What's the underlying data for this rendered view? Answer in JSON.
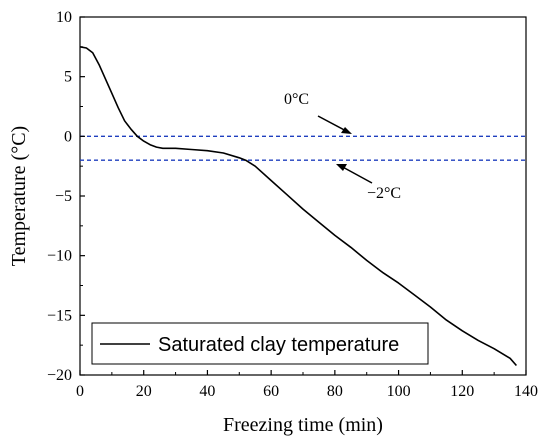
{
  "chart_data": {
    "type": "line",
    "xlabel": "Freezing time (min)",
    "ylabel": "Temperature (°C)",
    "xlim": [
      0,
      140
    ],
    "ylim": [
      -20,
      10
    ],
    "xticks": [
      0,
      20,
      40,
      60,
      80,
      100,
      120,
      140
    ],
    "yticks": [
      10,
      5,
      0,
      -5,
      -10,
      -15,
      -20
    ],
    "grid": false,
    "legend_position": "bottom-left",
    "series": [
      {
        "name": "Saturated clay temperature",
        "color": "#000000",
        "x": [
          0,
          2,
          4,
          6,
          8,
          10,
          12,
          14,
          16,
          18,
          20,
          22,
          24,
          26,
          28,
          30,
          35,
          40,
          45,
          50,
          52,
          55,
          60,
          65,
          70,
          75,
          80,
          85,
          90,
          95,
          100,
          105,
          110,
          115,
          120,
          125,
          130,
          135,
          137
        ],
        "y": [
          7.5,
          7.4,
          7.0,
          6.0,
          4.8,
          3.6,
          2.4,
          1.3,
          0.6,
          0.0,
          -0.4,
          -0.7,
          -0.9,
          -1.0,
          -1.0,
          -1.0,
          -1.1,
          -1.2,
          -1.4,
          -1.8,
          -2.0,
          -2.5,
          -3.7,
          -4.9,
          -6.1,
          -7.2,
          -8.3,
          -9.3,
          -10.4,
          -11.4,
          -12.3,
          -13.3,
          -14.3,
          -15.4,
          -16.3,
          -17.1,
          -17.8,
          -18.6,
          -19.2
        ]
      }
    ],
    "reference_lines": [
      {
        "y": 0,
        "label": "0°C",
        "color": "#1f3fbf",
        "style": "dashed"
      },
      {
        "y": -2,
        "label": "−2°C",
        "color": "#1f3fbf",
        "style": "dashed"
      }
    ]
  }
}
